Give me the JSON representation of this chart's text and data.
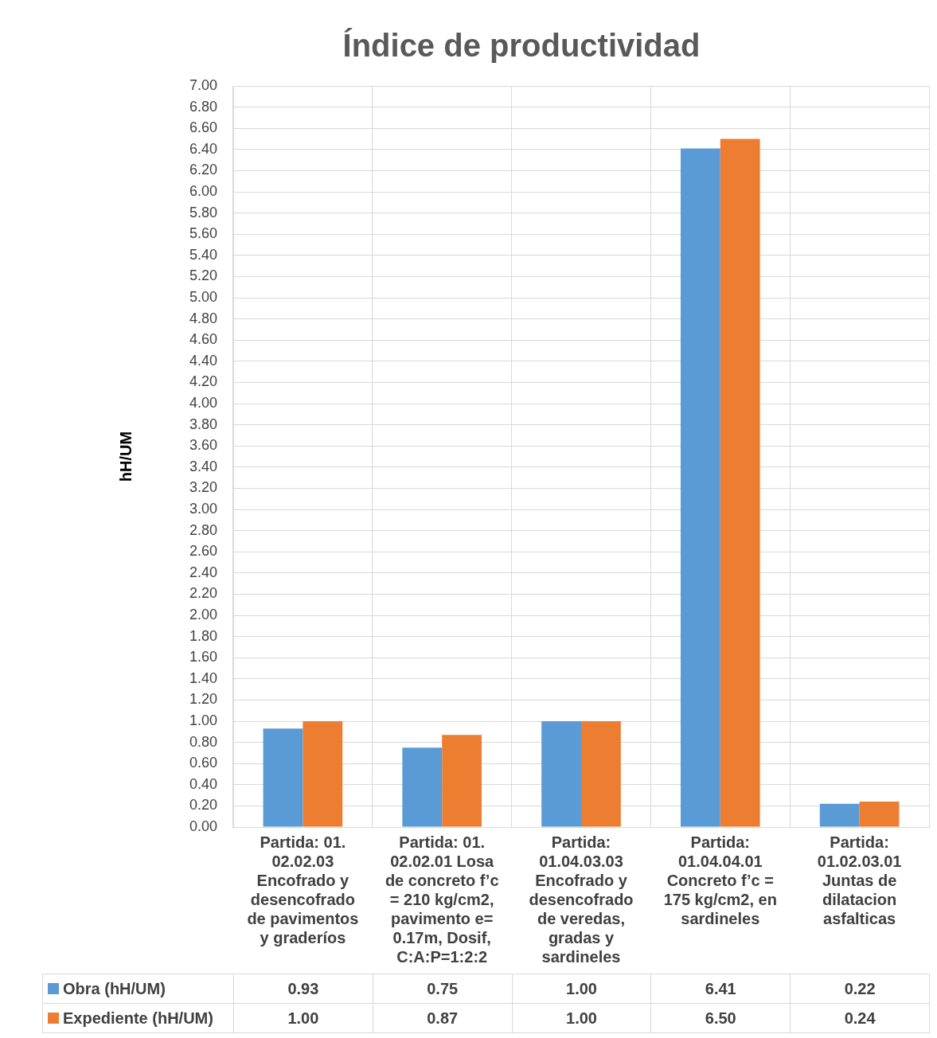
{
  "chart_data": {
    "type": "bar",
    "title": "Índice de productividad",
    "ylabel": "hH/UM",
    "categories": [
      "Partida: 01. 02.02.03 Encofrado y desencofrado de pavimentos y graderíos",
      "Partida: 01. 02.02.01 Losa de concreto f’c = 210 kg/cm2, pavimento e= 0.17m, Dosif, C:A:P=1:2:2",
      "Partida: 01.04.03.03 Encofrado y desencofrado de veredas, gradas y sardineles",
      "Partida: 01.04.04.01 Concreto f’c = 175 kg/cm2, en sardineles",
      "Partida: 01.02.03.01 Juntas de dilatacion asfalticas"
    ],
    "series": [
      {
        "name": "Obra (hH/UM)",
        "color": "#5b9bd5",
        "values": [
          0.93,
          0.75,
          1.0,
          6.41,
          0.22
        ],
        "value_labels": [
          "0.93",
          "0.75",
          "1.00",
          "6.41",
          "0.22"
        ]
      },
      {
        "name": "Expediente (hH/UM)",
        "color": "#ed7d31",
        "values": [
          1.0,
          0.87,
          1.0,
          6.5,
          0.24
        ],
        "value_labels": [
          "1.00",
          "0.87",
          "1.00",
          "6.50",
          "0.24"
        ]
      }
    ],
    "ylim": [
      0,
      7
    ],
    "yticks": [
      {
        "value": 0,
        "label": "0.00"
      },
      {
        "value": 0.2,
        "label": "0.20"
      },
      {
        "value": 0.4,
        "label": "0.40"
      },
      {
        "value": 0.6,
        "label": "0.60"
      },
      {
        "value": 0.8,
        "label": "0.80"
      },
      {
        "value": 1,
        "label": "1.00"
      },
      {
        "value": 1.2,
        "label": "1.20"
      },
      {
        "value": 1.4,
        "label": "1.40"
      },
      {
        "value": 1.6,
        "label": "1.60"
      },
      {
        "value": 1.8,
        "label": "1.80"
      },
      {
        "value": 2,
        "label": "2.00"
      },
      {
        "value": 2.2,
        "label": "2.20"
      },
      {
        "value": 2.4,
        "label": "2.40"
      },
      {
        "value": 2.6,
        "label": "2.60"
      },
      {
        "value": 2.8,
        "label": "2.80"
      },
      {
        "value": 3,
        "label": "3.00"
      },
      {
        "value": 3.2,
        "label": "3.20"
      },
      {
        "value": 3.4,
        "label": "3.40"
      },
      {
        "value": 3.6,
        "label": "3.60"
      },
      {
        "value": 3.8,
        "label": "3.80"
      },
      {
        "value": 4,
        "label": "4.00"
      },
      {
        "value": 4.2,
        "label": "4.20"
      },
      {
        "value": 4.4,
        "label": "4.40"
      },
      {
        "value": 4.6,
        "label": "4.60"
      },
      {
        "value": 4.8,
        "label": "4.80"
      },
      {
        "value": 5,
        "label": "5.00"
      },
      {
        "value": 5.2,
        "label": "5.20"
      },
      {
        "value": 5.4,
        "label": "5.40"
      },
      {
        "value": 5.6,
        "label": "5.60"
      },
      {
        "value": 5.8,
        "label": "5.80"
      },
      {
        "value": 6,
        "label": "6.00"
      },
      {
        "value": 6.2,
        "label": "6.20"
      },
      {
        "value": 6.4,
        "label": "6.40"
      },
      {
        "value": 6.6,
        "label": "6.60"
      },
      {
        "value": 6.8,
        "label": "6.80"
      },
      {
        "value": 7,
        "label": "7.00"
      }
    ],
    "grid": true,
    "legend": "bottom"
  }
}
